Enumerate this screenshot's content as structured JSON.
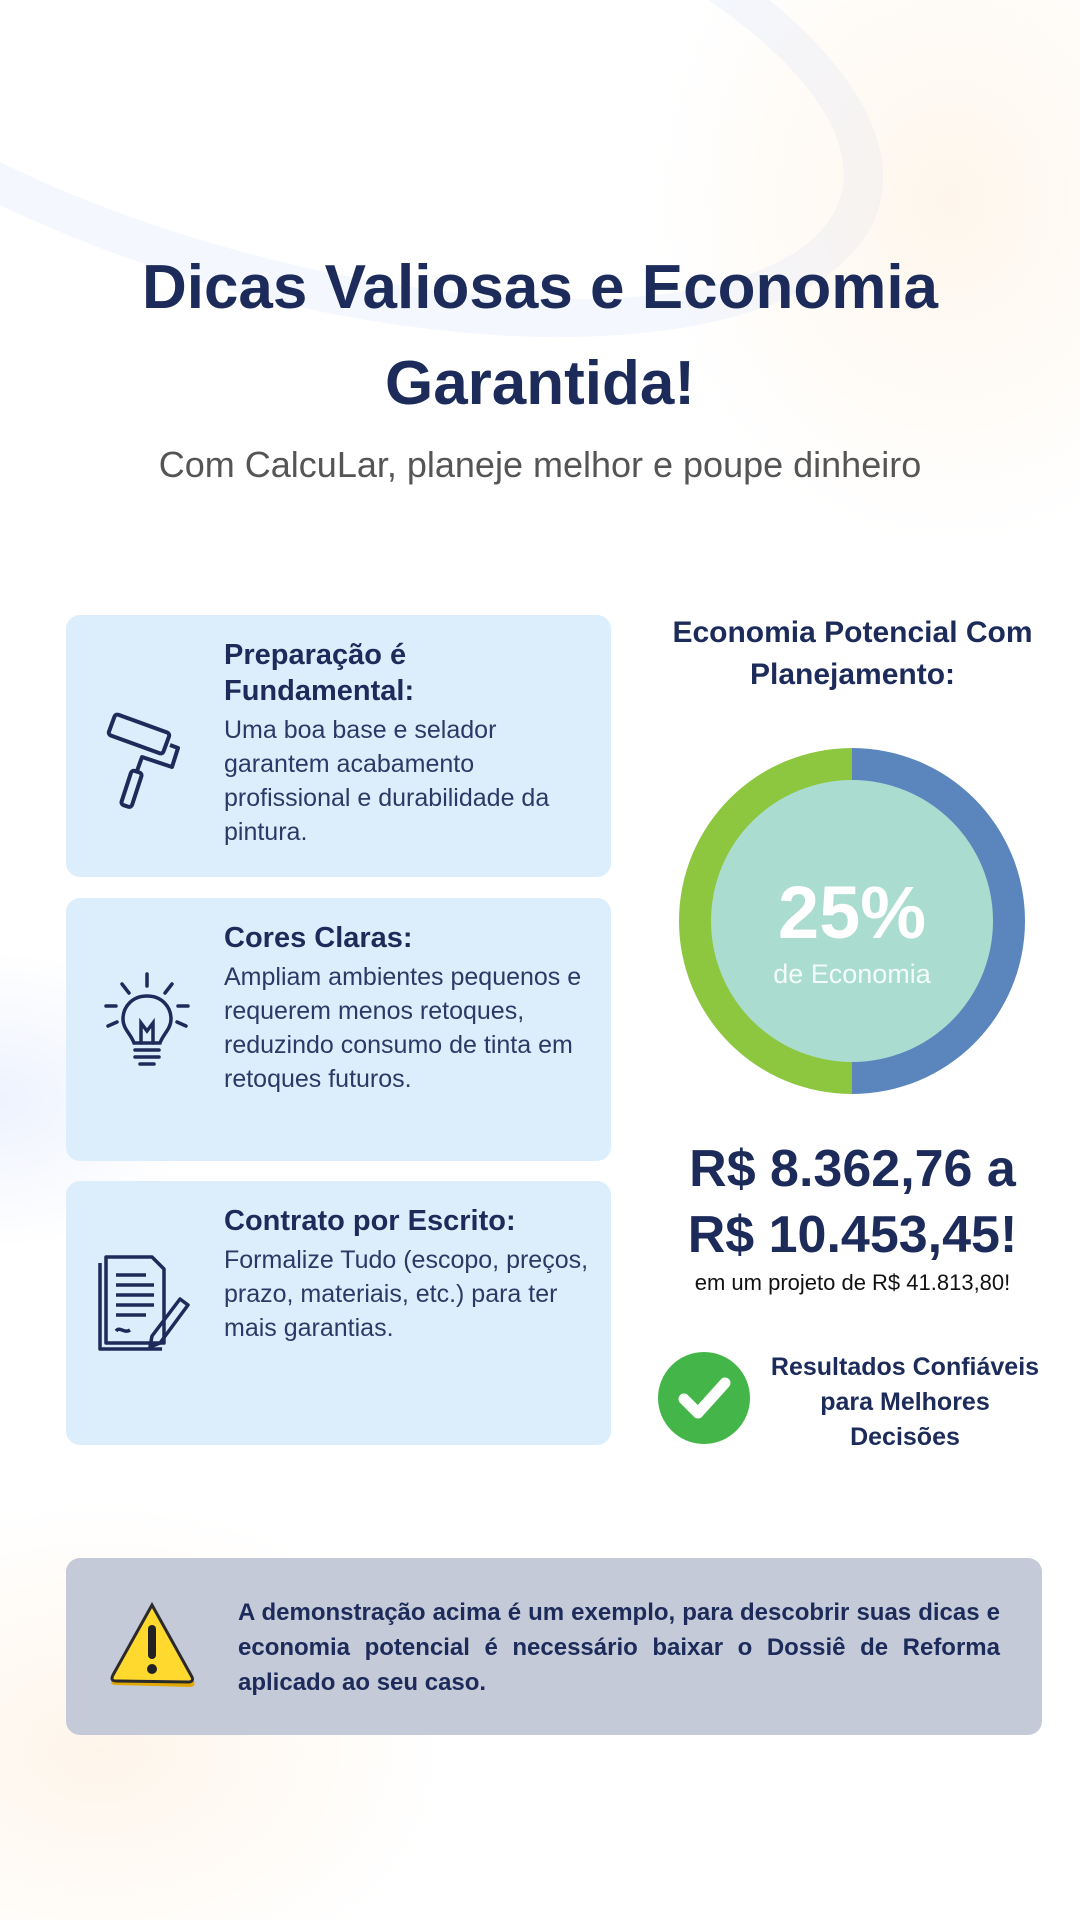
{
  "header": {
    "title": "Dicas Valiosas e Economia Garantida!",
    "subtitle": "Com CalcuLar, planeje melhor e poupe dinheiro"
  },
  "tips": [
    {
      "title": "Preparação é Fundamental:",
      "body": "Uma boa base e selador garantem acabamento profissional e durabilidade da pintura.",
      "icon": "paint-roller-icon"
    },
    {
      "title": "Cores Claras:",
      "body": "Ampliam ambientes pequenos e requerem menos retoques, reduzindo consumo de tinta em retoques futuros.",
      "icon": "lightbulb-icon"
    },
    {
      "title": "Contrato por Escrito:",
      "body": "Formalize Tudo (escopo, preços, prazo, materiais, etc.) para ter mais garantias.",
      "icon": "contract-document-icon"
    }
  ],
  "savings": {
    "title": "Economia Potencial Com Planejamento:",
    "percent_label": "25%",
    "percent_caption": "de Economia",
    "percent_value": 25,
    "amount_line1": "R$ 8.362,76 a",
    "amount_line2": "R$ 10.453,45!",
    "project_note": "em um projeto de R$ 41.813,80!",
    "badge_text": "Resultados Confiáveis para Melhores Decisões",
    "colors": {
      "green": "#8dc63f",
      "blue": "#5b86bd",
      "inner": "#aadcd0",
      "check": "#44b649"
    }
  },
  "disclaimer": {
    "text": "A demonstração acima é um exemplo, para descobrir suas dicas e economia potencial é necessário baixar o Dossiê de Reforma aplicado ao seu caso.",
    "icon": "warning-icon"
  }
}
